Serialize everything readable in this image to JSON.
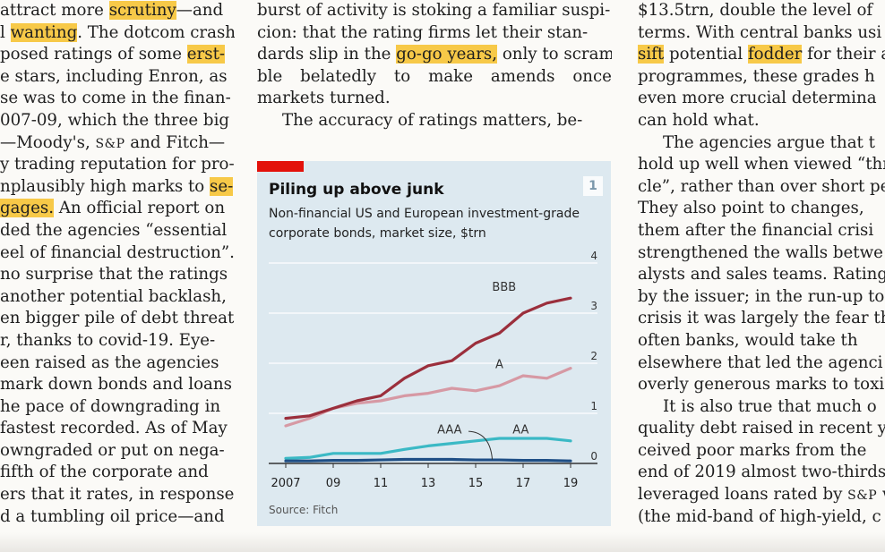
{
  "columns": {
    "left": [
      {
        "segments": [
          {
            "t": "attract more "
          },
          {
            "t": "scrutiny",
            "hl": true
          },
          {
            "t": "—and"
          }
        ]
      },
      {
        "segments": [
          {
            "t": "l "
          },
          {
            "t": "wanting",
            "hl": true
          },
          {
            "t": ". The dotcom crash"
          }
        ]
      },
      {
        "segments": [
          {
            "t": "posed ratings of some "
          },
          {
            "t": "erst-",
            "hl": true
          }
        ]
      },
      {
        "segments": [
          {
            "t": "e stars, including Enron, as"
          }
        ]
      },
      {
        "segments": [
          {
            "t": "se was to come in the finan-"
          }
        ]
      },
      {
        "segments": [
          {
            "t": "007-09, which the three big"
          }
        ]
      },
      {
        "segments": [
          {
            "t": "—Moody's, "
          },
          {
            "t": "S&P",
            "sc": true
          },
          {
            "t": " and Fitch—"
          }
        ]
      },
      {
        "segments": [
          {
            "t": "y trading reputation for pro-"
          }
        ]
      },
      {
        "segments": [
          {
            "t": "nplausibly high marks to "
          },
          {
            "t": "se-",
            "hl": true
          }
        ]
      },
      {
        "segments": [
          {
            "t": "gages.",
            "hl": true
          },
          {
            "t": " An official report on"
          }
        ]
      },
      {
        "segments": [
          {
            "t": "ded the agencies “essential"
          }
        ]
      },
      {
        "segments": [
          {
            "t": "eel of financial destruction”."
          }
        ]
      },
      {
        "segments": [
          {
            "t": "no surprise that the ratings"
          }
        ]
      },
      {
        "segments": [
          {
            "t": "another potential backlash,"
          }
        ]
      },
      {
        "segments": [
          {
            "t": "en bigger pile of debt threat-"
          }
        ]
      },
      {
        "segments": [
          {
            "t": "r, thanks to covid-19. Eye-"
          }
        ]
      },
      {
        "segments": [
          {
            "t": "een raised as the agencies"
          }
        ]
      },
      {
        "segments": [
          {
            "t": "mark down bonds and loans"
          }
        ]
      },
      {
        "segments": [
          {
            "t": "he pace of downgrading in"
          }
        ]
      },
      {
        "segments": [
          {
            "t": "fastest recorded. As of May"
          }
        ]
      },
      {
        "segments": [
          {
            "t": "owngraded or put on nega-"
          }
        ]
      },
      {
        "segments": [
          {
            "t": "fifth of the corporate and"
          }
        ]
      },
      {
        "segments": [
          {
            "t": "ers that it rates, in response"
          }
        ]
      },
      {
        "segments": [
          {
            "t": "d a tumbling oil price—and"
          }
        ]
      }
    ],
    "middle": [
      {
        "segments": [
          {
            "t": "burst of activity is stoking a familiar suspi-"
          }
        ]
      },
      {
        "segments": [
          {
            "t": "cion: that the rating firms let their stan-"
          }
        ]
      },
      {
        "segments": [
          {
            "t": "dards slip in the "
          },
          {
            "t": "go-go years,",
            "hl": true
          },
          {
            "t": " only to scram-"
          }
        ]
      },
      {
        "segments": [
          {
            "t": "ble"
          },
          {
            "t": "belatedly"
          },
          {
            "t": "to"
          },
          {
            "t": "make"
          },
          {
            "t": "amends"
          },
          {
            "t": "once"
          }
        ],
        "justify": true
      },
      {
        "segments": [
          {
            "t": "markets turned."
          }
        ]
      },
      {
        "segments": [
          {
            "t": "The accuracy of ratings matters, be-"
          }
        ],
        "indent": true
      }
    ],
    "right": [
      {
        "segments": [
          {
            "t": "$13.5trn, double the level of"
          }
        ]
      },
      {
        "segments": [
          {
            "t": "terms. With central banks usi"
          }
        ]
      },
      {
        "segments": [
          {
            "t": "sift",
            "hl": true
          },
          {
            "t": " potential "
          },
          {
            "t": "fodder",
            "hl": true
          },
          {
            "t": " for their a"
          }
        ]
      },
      {
        "segments": [
          {
            "t": "programmes, these grades h"
          }
        ]
      },
      {
        "segments": [
          {
            "t": "even more crucial determina"
          }
        ]
      },
      {
        "segments": [
          {
            "t": "can hold what."
          }
        ]
      },
      {
        "segments": [
          {
            "t": "The agencies argue that t"
          }
        ],
        "indent": true
      },
      {
        "segments": [
          {
            "t": "hold up well when viewed “thr"
          }
        ]
      },
      {
        "segments": [
          {
            "t": "cle”, rather than over short per"
          }
        ]
      },
      {
        "segments": [
          {
            "t": "They also point to changes,"
          }
        ]
      },
      {
        "segments": [
          {
            "t": "them after the financial crisi"
          }
        ]
      },
      {
        "segments": [
          {
            "t": "strengthened the walls betwe"
          }
        ]
      },
      {
        "segments": [
          {
            "t": "alysts and sales teams. Ratings"
          }
        ]
      },
      {
        "segments": [
          {
            "t": "by the issuer; in the run-up to"
          }
        ]
      },
      {
        "segments": [
          {
            "t": "crisis it was largely the fear tha"
          }
        ]
      },
      {
        "segments": [
          {
            "t": "often banks, would take th"
          }
        ]
      },
      {
        "segments": [
          {
            "t": "elsewhere that led the agenci"
          }
        ]
      },
      {
        "segments": [
          {
            "t": "overly generous marks to toxic"
          }
        ]
      },
      {
        "segments": [
          {
            "t": "It is also true that much o"
          }
        ],
        "indent": true
      },
      {
        "segments": [
          {
            "t": "quality debt raised in recent y"
          }
        ]
      },
      {
        "segments": [
          {
            "t": "ceived poor marks from the"
          }
        ]
      },
      {
        "segments": [
          {
            "t": "end of 2019 almost two-thirds"
          }
        ]
      },
      {
        "segments": [
          {
            "t": "leveraged loans rated by "
          },
          {
            "t": "S&P",
            "sc": true
          },
          {
            "t": " w"
          }
        ]
      },
      {
        "segments": [
          {
            "t": "(the mid-band of high-yield, c"
          }
        ]
      }
    ]
  },
  "figure": {
    "number": "1",
    "source": "Source: Fitch"
  },
  "colors": {
    "highlight": "#f7c948",
    "chart_bg": "#dde9f0",
    "bbb": "#9b2f3c",
    "a": "#d699a4",
    "aa": "#3bb9c5",
    "aaa": "#1f4f86",
    "econ_red": "#e3120b"
  },
  "chart_data": {
    "type": "line",
    "title": "Piling up above junk",
    "subtitle": "Non-financial US and European investment-grade corporate bonds, market size, $trn",
    "x": [
      2007,
      2008,
      2009,
      2010,
      2011,
      2012,
      2013,
      2014,
      2015,
      2016,
      2017,
      2018,
      2019
    ],
    "xtick_labels": [
      "2007",
      "09",
      "11",
      "13",
      "15",
      "17",
      "19"
    ],
    "xtick_values": [
      2007,
      2009,
      2011,
      2013,
      2015,
      2017,
      2019
    ],
    "ylim": [
      0,
      4
    ],
    "yticks": [
      0,
      1,
      2,
      3,
      4
    ],
    "y_axis_side": "right",
    "series": [
      {
        "name": "BBB",
        "color": "#9b2f3c",
        "values": [
          0.9,
          0.95,
          1.1,
          1.25,
          1.35,
          1.7,
          1.95,
          2.05,
          2.4,
          2.6,
          3.0,
          3.2,
          3.3
        ]
      },
      {
        "name": "A",
        "color": "#d699a4",
        "values": [
          0.75,
          0.9,
          1.1,
          1.2,
          1.25,
          1.35,
          1.4,
          1.5,
          1.45,
          1.55,
          1.75,
          1.7,
          1.9
        ]
      },
      {
        "name": "AA",
        "color": "#3bb9c5",
        "values": [
          0.1,
          0.12,
          0.2,
          0.2,
          0.2,
          0.28,
          0.35,
          0.4,
          0.45,
          0.5,
          0.5,
          0.5,
          0.45
        ]
      },
      {
        "name": "AAA",
        "color": "#1f4f86",
        "values": [
          0.05,
          0.05,
          0.06,
          0.06,
          0.07,
          0.08,
          0.08,
          0.08,
          0.07,
          0.07,
          0.06,
          0.06,
          0.05
        ]
      }
    ]
  }
}
